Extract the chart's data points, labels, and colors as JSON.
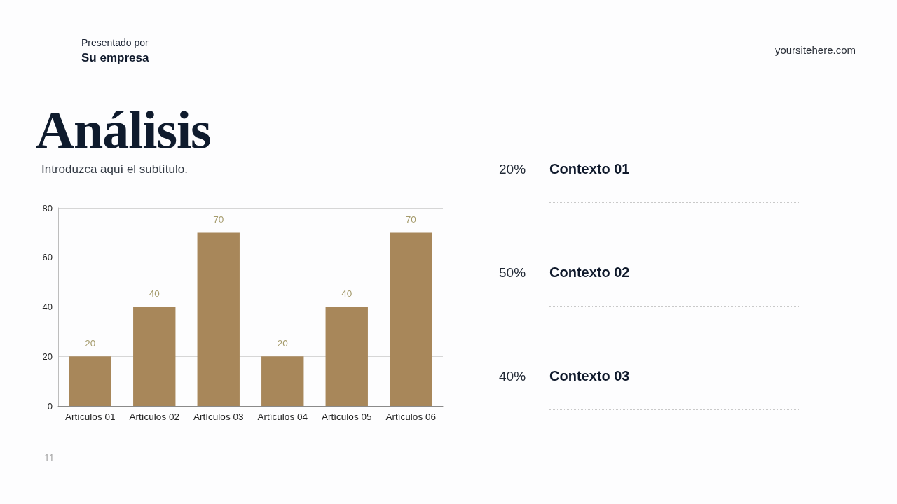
{
  "chart_data": [
    {
      "type": "bar",
      "title": "Análisis",
      "subtitle": "Introduzca aquí el subtítulo.",
      "annotations": [
        "Presentado por",
        "Su empresa",
        "yoursitehere.com",
        "11"
      ],
      "categories": [
        "Artículos 01",
        "Artículos 02",
        "Artículos 03",
        "Artículos 04",
        "Artículos 05",
        "Artículos 06"
      ],
      "values": [
        20,
        40,
        70,
        20,
        40,
        70
      ],
      "color": "#a8875a",
      "ylim": [
        0,
        80
      ],
      "yticks": [
        0,
        20,
        40,
        60,
        80
      ],
      "grid": "y",
      "data_labels": true
    },
    {
      "type": "other",
      "annotations": [
        "20%",
        "Contexto 01",
        "50%",
        "Contexto 02",
        "40%",
        "Contexto 03"
      ]
    }
  ]
}
